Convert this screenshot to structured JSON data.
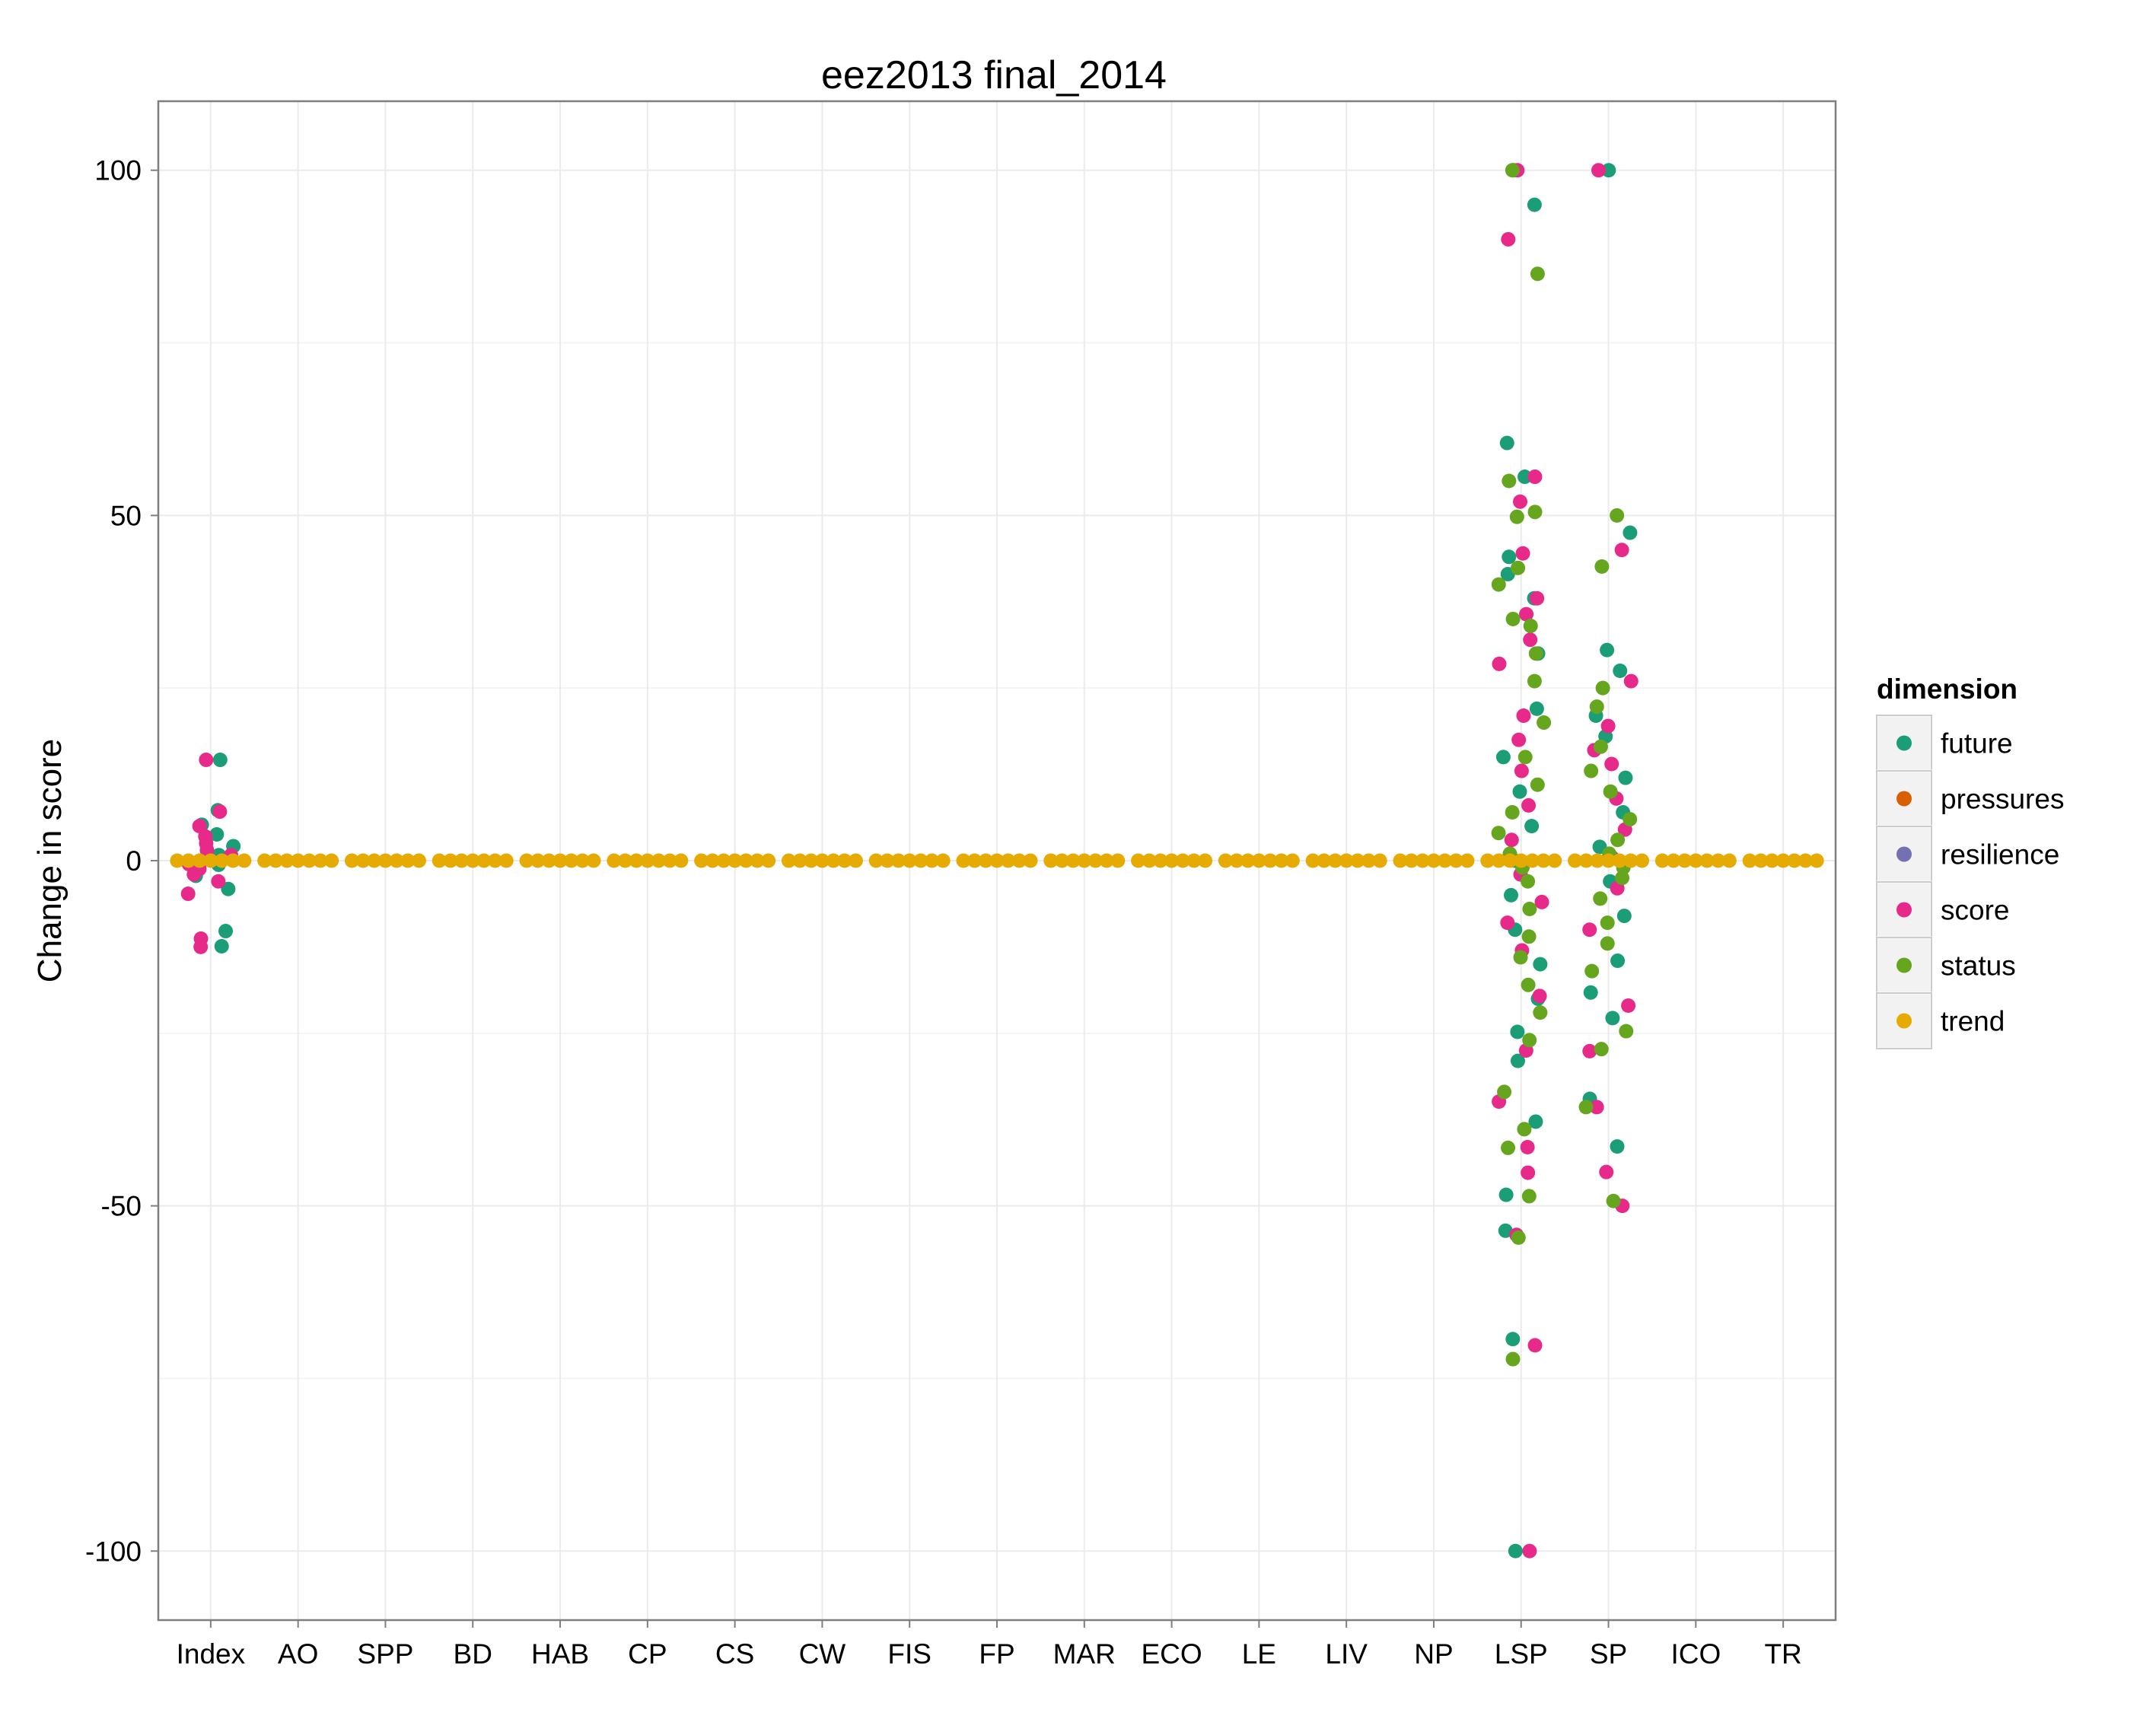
{
  "chart_data": {
    "type": "scatter",
    "title": "eez2013 final_2014",
    "xlabel": "",
    "ylabel": "Change in score",
    "ylim": [
      -110,
      110
    ],
    "yticks": [
      -100,
      -50,
      0,
      50,
      100
    ],
    "grid": true,
    "legend_position": "right",
    "categories": [
      "Index",
      "AO",
      "SPP",
      "BD",
      "HAB",
      "CP",
      "CS",
      "CW",
      "FIS",
      "FP",
      "MAR",
      "ECO",
      "LE",
      "LIV",
      "NP",
      "LSP",
      "SP",
      "ICO",
      "TR"
    ],
    "legend": {
      "title": "dimension",
      "entries": [
        {
          "name": "future",
          "color": "#1b9e77"
        },
        {
          "name": "pressures",
          "color": "#d95f02"
        },
        {
          "name": "resilience",
          "color": "#7570b3"
        },
        {
          "name": "score",
          "color": "#e7298a"
        },
        {
          "name": "status",
          "color": "#66a61e"
        },
        {
          "name": "trend",
          "color": "#e6ab02"
        }
      ]
    },
    "series": [
      {
        "name": "future",
        "points": [
          [
            "Index",
            7.3
          ],
          [
            "Index",
            5.2
          ],
          [
            "Index",
            3.8
          ],
          [
            "Index",
            2.1
          ],
          [
            "Index",
            0.8
          ],
          [
            "Index",
            -0.6
          ],
          [
            "Index",
            -2.2
          ],
          [
            "Index",
            -4.1
          ],
          [
            "Index",
            14.6
          ],
          [
            "Index",
            -10.2
          ],
          [
            "Index",
            -12.4
          ],
          [
            "LSP",
            100
          ],
          [
            "LSP",
            95
          ],
          [
            "LSP",
            60.5
          ],
          [
            "LSP",
            55.6
          ],
          [
            "LSP",
            44
          ],
          [
            "LSP",
            41.5
          ],
          [
            "LSP",
            38
          ],
          [
            "LSP",
            30
          ],
          [
            "LSP",
            22
          ],
          [
            "LSP",
            15
          ],
          [
            "LSP",
            10
          ],
          [
            "LSP",
            5
          ],
          [
            "LSP",
            0
          ],
          [
            "LSP",
            -5
          ],
          [
            "LSP",
            -10
          ],
          [
            "LSP",
            -15
          ],
          [
            "LSP",
            -20
          ],
          [
            "LSP",
            -24.8
          ],
          [
            "LSP",
            -29
          ],
          [
            "LSP",
            -37.8
          ],
          [
            "LSP",
            -48.4
          ],
          [
            "LSP",
            -53.6
          ],
          [
            "LSP",
            -69.3
          ],
          [
            "LSP",
            -100
          ],
          [
            "SP",
            100
          ],
          [
            "SP",
            47.5
          ],
          [
            "SP",
            30.5
          ],
          [
            "SP",
            27.5
          ],
          [
            "SP",
            21
          ],
          [
            "SP",
            18
          ],
          [
            "SP",
            12
          ],
          [
            "SP",
            7
          ],
          [
            "SP",
            2
          ],
          [
            "SP",
            -3
          ],
          [
            "SP",
            -8
          ],
          [
            "SP",
            -14.5
          ],
          [
            "SP",
            -19.1
          ],
          [
            "SP",
            -22.8
          ],
          [
            "SP",
            -34.5
          ],
          [
            "SP",
            -41.4
          ]
        ]
      },
      {
        "name": "score",
        "points": [
          [
            "Index",
            14.6
          ],
          [
            "Index",
            7.1
          ],
          [
            "Index",
            5
          ],
          [
            "Index",
            3.5
          ],
          [
            "Index",
            2.5
          ],
          [
            "Index",
            1.5
          ],
          [
            "Index",
            0.8
          ],
          [
            "Index",
            0.2
          ],
          [
            "Index",
            -0.5
          ],
          [
            "Index",
            -1.2
          ],
          [
            "Index",
            -2
          ],
          [
            "Index",
            -3
          ],
          [
            "Index",
            -4.8
          ],
          [
            "Index",
            -11.3
          ],
          [
            "Index",
            -12.5
          ],
          [
            "LSP",
            100
          ],
          [
            "LSP",
            90
          ],
          [
            "LSP",
            55.6
          ],
          [
            "LSP",
            52
          ],
          [
            "LSP",
            44.5
          ],
          [
            "LSP",
            38
          ],
          [
            "LSP",
            35.7
          ],
          [
            "LSP",
            32
          ],
          [
            "LSP",
            28.5
          ],
          [
            "LSP",
            21
          ],
          [
            "LSP",
            17.5
          ],
          [
            "LSP",
            13
          ],
          [
            "LSP",
            8
          ],
          [
            "LSP",
            3
          ],
          [
            "LSP",
            -2
          ],
          [
            "LSP",
            -6
          ],
          [
            "LSP",
            -9
          ],
          [
            "LSP",
            -13
          ],
          [
            "LSP",
            -19.6
          ],
          [
            "LSP",
            -27.5
          ],
          [
            "LSP",
            -34.9
          ],
          [
            "LSP",
            -41.5
          ],
          [
            "LSP",
            -45.2
          ],
          [
            "LSP",
            -54.2
          ],
          [
            "LSP",
            -70.2
          ],
          [
            "LSP",
            -100
          ],
          [
            "SP",
            100
          ],
          [
            "SP",
            45
          ],
          [
            "SP",
            26
          ],
          [
            "SP",
            19.5
          ],
          [
            "SP",
            16
          ],
          [
            "SP",
            14
          ],
          [
            "SP",
            9
          ],
          [
            "SP",
            4.5
          ],
          [
            "SP",
            0.5
          ],
          [
            "SP",
            -4
          ],
          [
            "SP",
            -10
          ],
          [
            "SP",
            -21
          ],
          [
            "SP",
            -27.6
          ],
          [
            "SP",
            -35.7
          ],
          [
            "SP",
            -45.1
          ],
          [
            "SP",
            -50
          ]
        ]
      },
      {
        "name": "status",
        "points": [
          [
            "LSP",
            100
          ],
          [
            "LSP",
            85
          ],
          [
            "LSP",
            55
          ],
          [
            "LSP",
            50.5
          ],
          [
            "LSP",
            49.8
          ],
          [
            "LSP",
            42.4
          ],
          [
            "LSP",
            40
          ],
          [
            "LSP",
            35
          ],
          [
            "LSP",
            34
          ],
          [
            "LSP",
            30
          ],
          [
            "LSP",
            26
          ],
          [
            "LSP",
            20
          ],
          [
            "LSP",
            15
          ],
          [
            "LSP",
            11
          ],
          [
            "LSP",
            7
          ],
          [
            "LSP",
            4
          ],
          [
            "LSP",
            1
          ],
          [
            "LSP",
            -1
          ],
          [
            "LSP",
            -3
          ],
          [
            "LSP",
            -7
          ],
          [
            "LSP",
            -11
          ],
          [
            "LSP",
            -14
          ],
          [
            "LSP",
            -18
          ],
          [
            "LSP",
            -22
          ],
          [
            "LSP",
            -26
          ],
          [
            "LSP",
            -33.5
          ],
          [
            "LSP",
            -38.9
          ],
          [
            "LSP",
            -41.6
          ],
          [
            "LSP",
            -48.6
          ],
          [
            "LSP",
            -54.6
          ],
          [
            "LSP",
            -72.2
          ],
          [
            "SP",
            50
          ],
          [
            "SP",
            42.6
          ],
          [
            "SP",
            25
          ],
          [
            "SP",
            22.3
          ],
          [
            "SP",
            16.5
          ],
          [
            "SP",
            13
          ],
          [
            "SP",
            10
          ],
          [
            "SP",
            6
          ],
          [
            "SP",
            3
          ],
          [
            "SP",
            1
          ],
          [
            "SP",
            -1
          ],
          [
            "SP",
            -2.5
          ],
          [
            "SP",
            -5.5
          ],
          [
            "SP",
            -9
          ],
          [
            "SP",
            -12
          ],
          [
            "SP",
            -16
          ],
          [
            "SP",
            -24.7
          ],
          [
            "SP",
            -27.3
          ],
          [
            "SP",
            -35.7
          ],
          [
            "SP",
            -49.3
          ]
        ]
      },
      {
        "name": "trend",
        "points": [
          [
            "Index",
            0
          ],
          [
            "AO",
            0
          ],
          [
            "SPP",
            0
          ],
          [
            "BD",
            0
          ],
          [
            "HAB",
            0
          ],
          [
            "CP",
            0
          ],
          [
            "CS",
            0
          ],
          [
            "CW",
            0
          ],
          [
            "FIS",
            0
          ],
          [
            "FP",
            0
          ],
          [
            "MAR",
            0
          ],
          [
            "ECO",
            0
          ],
          [
            "LE",
            0
          ],
          [
            "LIV",
            0
          ],
          [
            "NP",
            0
          ],
          [
            "LSP",
            0
          ],
          [
            "SP",
            0
          ],
          [
            "ICO",
            0
          ],
          [
            "TR",
            0
          ]
        ]
      }
    ]
  }
}
